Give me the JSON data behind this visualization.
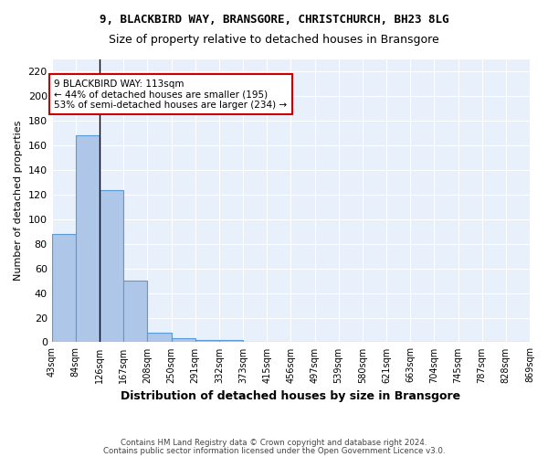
{
  "title1": "9, BLACKBIRD WAY, BRANSGORE, CHRISTCHURCH, BH23 8LG",
  "title2": "Size of property relative to detached houses in Bransgore",
  "xlabel": "Distribution of detached houses by size in Bransgore",
  "ylabel": "Number of detached properties",
  "footnote1": "Contains HM Land Registry data © Crown copyright and database right 2024.",
  "footnote2": "Contains public sector information licensed under the Open Government Licence v3.0.",
  "bin_labels": [
    "43sqm",
    "84sqm",
    "126sqm",
    "167sqm",
    "208sqm",
    "250sqm",
    "291sqm",
    "332sqm",
    "373sqm",
    "415sqm",
    "456sqm",
    "497sqm",
    "539sqm",
    "580sqm",
    "621sqm",
    "663sqm",
    "704sqm",
    "745sqm",
    "787sqm",
    "828sqm",
    "869sqm"
  ],
  "bar_values": [
    88,
    168,
    124,
    50,
    8,
    3,
    2,
    2,
    0,
    0,
    0,
    0,
    0,
    0,
    0,
    0,
    0,
    0,
    0,
    0
  ],
  "bar_color": "#aec6e8",
  "bar_edge_color": "#5b9bd5",
  "background_color": "#e8f0fb",
  "grid_color": "#ffffff",
  "vline_x": 2.0,
  "vline_color": "#000000",
  "annotation_text": "9 BLACKBIRD WAY: 113sqm\n← 44% of detached houses are smaller (195)\n53% of semi-detached houses are larger (234) →",
  "annotation_box_color": "#ffffff",
  "annotation_box_edge": "#cc0000",
  "ylim": [
    0,
    230
  ],
  "yticks": [
    0,
    20,
    40,
    60,
    80,
    100,
    120,
    140,
    160,
    180,
    200,
    220
  ]
}
